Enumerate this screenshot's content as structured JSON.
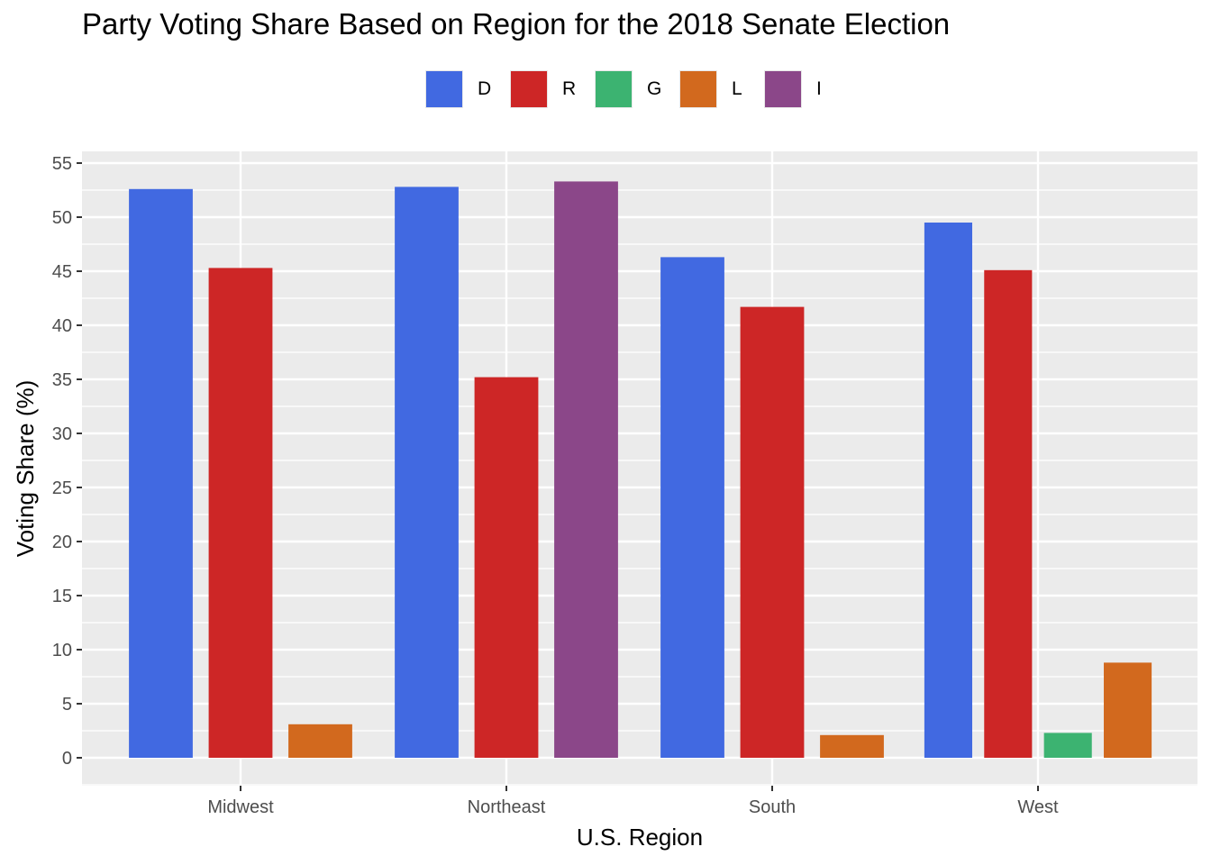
{
  "chart_data": {
    "type": "bar",
    "title": "Party Voting Share Based on Region for the 2018 Senate Election",
    "xlabel": "U.S. Region",
    "ylabel": "Voting Share (%)",
    "categories": [
      "Midwest",
      "Northeast",
      "South",
      "West"
    ],
    "ylim": [
      0,
      55
    ],
    "yticks": [
      0,
      5,
      10,
      15,
      20,
      25,
      30,
      35,
      40,
      45,
      50,
      55
    ],
    "grid": true,
    "legend_position": "top",
    "series": [
      {
        "name": "D",
        "color": "#4169e1",
        "values": [
          52.6,
          52.8,
          46.3,
          49.5
        ]
      },
      {
        "name": "R",
        "color": "#cd2626",
        "values": [
          45.3,
          35.2,
          41.7,
          45.1
        ]
      },
      {
        "name": "G",
        "color": "#3cb371",
        "values": [
          null,
          null,
          null,
          2.3
        ]
      },
      {
        "name": "L",
        "color": "#d2691e",
        "values": [
          3.1,
          null,
          2.1,
          8.8
        ]
      },
      {
        "name": "I",
        "color": "#8b4789",
        "values": [
          null,
          53.3,
          null,
          null
        ]
      }
    ]
  }
}
